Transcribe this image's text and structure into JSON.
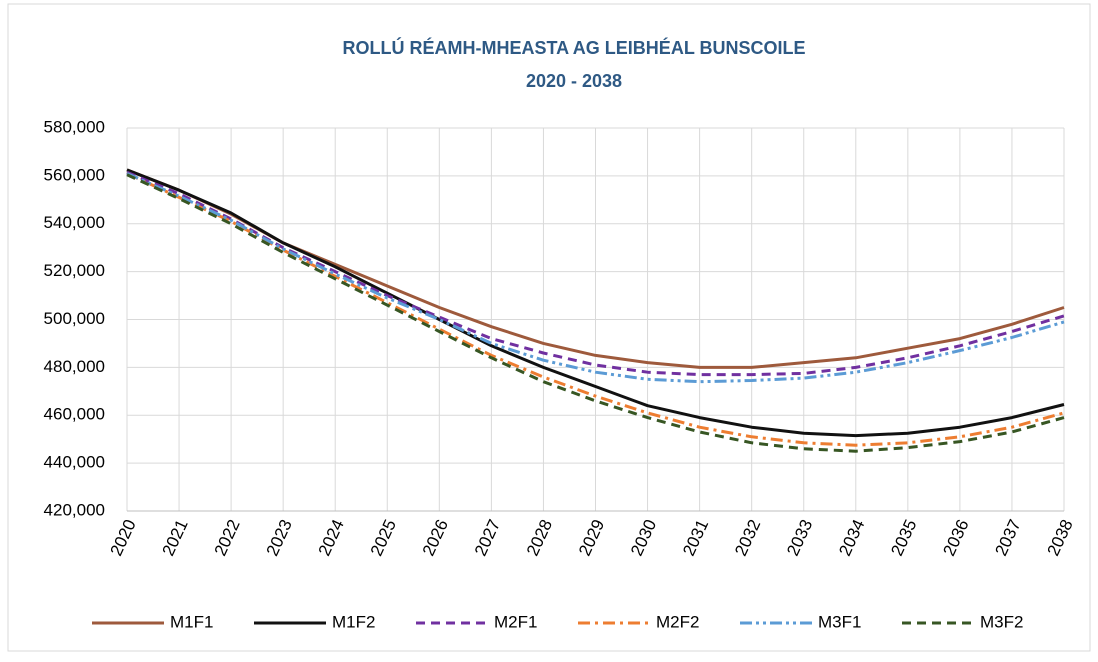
{
  "chart_data": {
    "type": "line",
    "title": "ROLLÚ  RÉAMH-MHEASTA  AG LEIBHÉAL BUNSCOILE",
    "subtitle": "2020 - 2038",
    "categories": [
      "2020",
      "2021",
      "2022",
      "2023",
      "2024",
      "2025",
      "2026",
      "2027",
      "2028",
      "2029",
      "2030",
      "2031",
      "2032",
      "2033",
      "2034",
      "2035",
      "2036",
      "2037",
      "2038"
    ],
    "series": [
      {
        "name": "M1F1",
        "color": "#9e5a3c",
        "dash": "solid",
        "values": [
          562500,
          554000,
          544000,
          532000,
          523000,
          514000,
          505000,
          497000,
          490000,
          485000,
          482000,
          480000,
          480000,
          482000,
          484000,
          488000,
          492000,
          498000,
          505000
        ]
      },
      {
        "name": "M1F2",
        "color": "#111111",
        "dash": "solid",
        "values": [
          562500,
          554000,
          544500,
          532000,
          522000,
          511000,
          500000,
          489000,
          480000,
          472000,
          464000,
          459000,
          455000,
          452500,
          451500,
          452500,
          455000,
          459000,
          464500
        ]
      },
      {
        "name": "M2F1",
        "color": "#7030a0",
        "dash": "dash",
        "values": [
          561500,
          552500,
          542000,
          530000,
          520000,
          510000,
          501000,
          492000,
          486000,
          481000,
          478000,
          477000,
          477000,
          477500,
          480000,
          484000,
          489000,
          495000,
          501500
        ]
      },
      {
        "name": "M2F2",
        "color": "#ed7d31",
        "dash": "dashdot",
        "values": [
          561000,
          551000,
          541000,
          529000,
          518000,
          507000,
          496000,
          485000,
          476000,
          468000,
          461000,
          455000,
          451000,
          448500,
          447500,
          448500,
          451000,
          455000,
          461000
        ]
      },
      {
        "name": "M3F1",
        "color": "#5b9bd5",
        "dash": "dashdotdot",
        "values": [
          561000,
          551500,
          541500,
          529500,
          519000,
          509000,
          500000,
          490000,
          483000,
          478000,
          475000,
          474000,
          474500,
          475500,
          478000,
          482000,
          487000,
          492500,
          499000
        ]
      },
      {
        "name": "M3F2",
        "color": "#375623",
        "dash": "dash",
        "values": [
          560500,
          550500,
          540000,
          528000,
          517000,
          506000,
          495000,
          484000,
          474000,
          466000,
          459000,
          453000,
          448500,
          446000,
          445000,
          446500,
          449000,
          453000,
          459000
        ]
      }
    ],
    "ylim": [
      420000,
      580000
    ],
    "yticks": [
      {
        "value": 420000,
        "label": "420,000"
      },
      {
        "value": 440000,
        "label": "440,000"
      },
      {
        "value": 460000,
        "label": "460,000"
      },
      {
        "value": 480000,
        "label": "480,000"
      },
      {
        "value": 500000,
        "label": "500,000"
      },
      {
        "value": 520000,
        "label": "520,000"
      },
      {
        "value": 540000,
        "label": "540,000"
      },
      {
        "value": 560000,
        "label": "560,000"
      },
      {
        "value": 580000,
        "label": "580,000"
      }
    ],
    "grid": true,
    "legend": "bottom"
  }
}
